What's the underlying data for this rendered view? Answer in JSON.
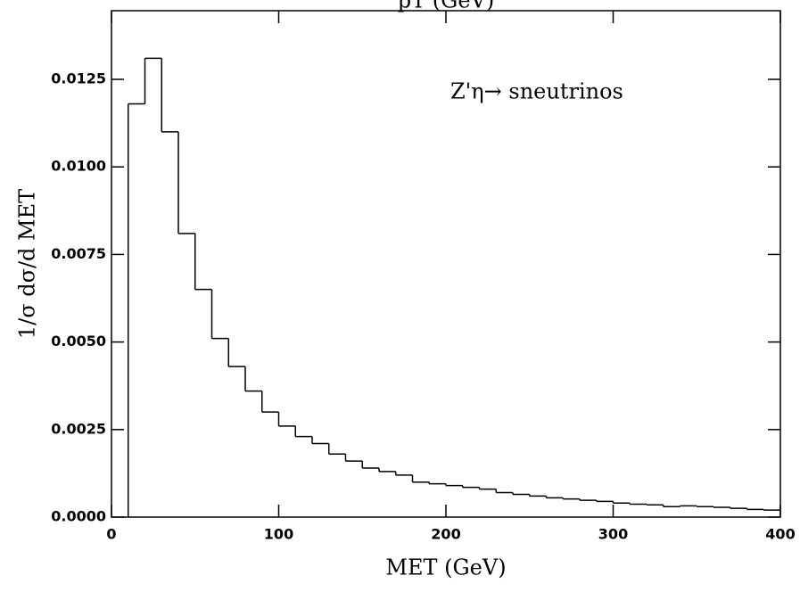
{
  "chart_data": {
    "type": "histogram",
    "title": "pT (GeV)",
    "annotation": "Z'η→ sneutrinos",
    "xlabel": "MET (GeV)",
    "ylabel": "1/σ dσ/d MET",
    "bins": [
      10,
      20,
      30,
      40,
      50,
      60,
      70,
      80,
      90,
      100,
      110,
      120,
      130,
      140,
      150,
      160,
      170,
      180,
      190,
      200,
      210,
      220,
      230,
      240,
      250,
      260,
      270,
      280,
      290,
      300,
      310,
      320,
      330,
      340,
      350,
      360,
      370,
      380,
      390,
      400
    ],
    "values": [
      0.0118,
      0.0131,
      0.011,
      0.0081,
      0.0065,
      0.0051,
      0.0043,
      0.0036,
      0.003,
      0.0026,
      0.0023,
      0.0021,
      0.0018,
      0.0016,
      0.0014,
      0.0013,
      0.0012,
      0.001,
      0.00095,
      0.0009,
      0.00085,
      0.0008,
      0.0007,
      0.00065,
      0.0006,
      0.00055,
      0.00052,
      0.00048,
      0.00045,
      0.0004,
      0.00037,
      0.00035,
      0.0003,
      0.00032,
      0.0003,
      0.00028,
      0.00025,
      0.00022,
      0.0002
    ],
    "color": "#000000",
    "xlim": [
      0,
      400
    ],
    "xticks": [
      0,
      100,
      200,
      300,
      400
    ],
    "ylim": [
      0,
      0.01446
    ],
    "yticks": [
      {
        "value": 0,
        "label": "0.0000"
      },
      {
        "value": 0.0025,
        "label": "0.0025"
      },
      {
        "value": 0.005,
        "label": "0.0050"
      },
      {
        "value": 0.0075,
        "label": "0.0075"
      },
      {
        "value": 0.01,
        "label": "0.0100"
      },
      {
        "value": 0.0125,
        "label": "0.0125"
      }
    ]
  }
}
